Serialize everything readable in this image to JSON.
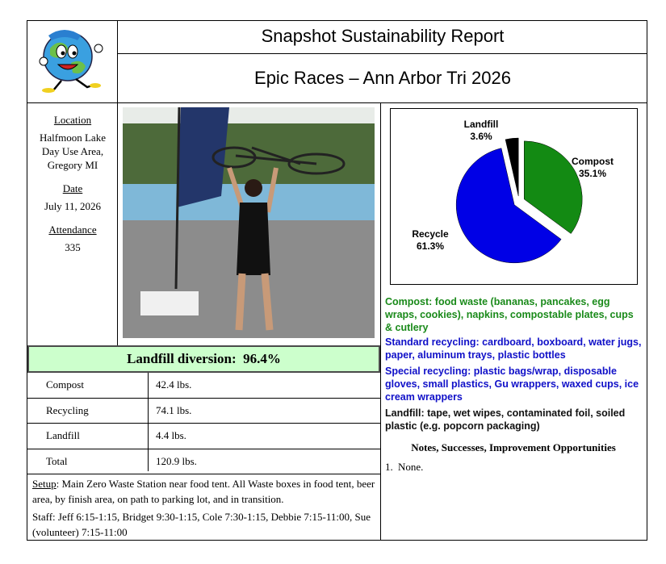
{
  "header": {
    "title": "Snapshot Sustainability Report",
    "subtitle": "Epic Races – Ann Arbor Tri 2026"
  },
  "event": {
    "location_label": "Location",
    "location": "Halfmoon Lake Day Use Area, Gregory MI",
    "date_label": "Date",
    "date": "July 11, 2026",
    "attendance_label": "Attendance",
    "attendance": "335"
  },
  "diversion": {
    "label": "Landfill diversion:",
    "value": "96.4%"
  },
  "weights": {
    "rows": [
      [
        "Compost",
        "42.4 lbs."
      ],
      [
        "Recycling",
        "74.1 lbs."
      ],
      [
        "Landfill",
        "4.4 lbs."
      ],
      [
        "Total",
        "120.9 lbs."
      ]
    ]
  },
  "setup": {
    "label": "Setup",
    "text": ": Main Zero Waste Station near food tent. All Waste boxes in food tent, beer area, by finish area, on path to parking lot, and in transition."
  },
  "staff": "Staff: Jeff 6:15-1:15, Bridget 9:30-1:15, Cole 7:30-1:15, Debbie 7:15-11:00, Sue (volunteer) 7:15-11:00",
  "chart_data": {
    "type": "pie",
    "categories": [
      "Compost",
      "Recycle",
      "Landfill"
    ],
    "values": [
      35.1,
      61.3,
      3.6
    ],
    "value_labels": [
      "35.1%",
      "61.3%",
      "3.6%"
    ],
    "colors": [
      "#138a13",
      "#0000e6",
      "#000000"
    ],
    "exploded": true
  },
  "streams": [
    {
      "text": "Compost: food waste (bananas, pancakes, egg wraps, cookies), napkins, compostable plates, cups & cutlery",
      "color": "#1a8a1a"
    },
    {
      "text": "Standard recycling: cardboard, boxboard, water jugs, paper, aluminum trays, plastic bottles",
      "color": "#1010c8"
    },
    {
      "text": "Special recycling: plastic bags/wrap, disposable gloves, small plastics, Gu wrappers, waxed cups, ice cream wrappers",
      "color": "#1010c8"
    },
    {
      "text": "Landfill: tape, wet wipes, contaminated foil, soiled plastic (e.g. popcorn packaging)",
      "color": "#111111"
    }
  ],
  "notes": {
    "title": "Notes, Successes, Improvement Opportunities",
    "items": [
      "None."
    ]
  }
}
